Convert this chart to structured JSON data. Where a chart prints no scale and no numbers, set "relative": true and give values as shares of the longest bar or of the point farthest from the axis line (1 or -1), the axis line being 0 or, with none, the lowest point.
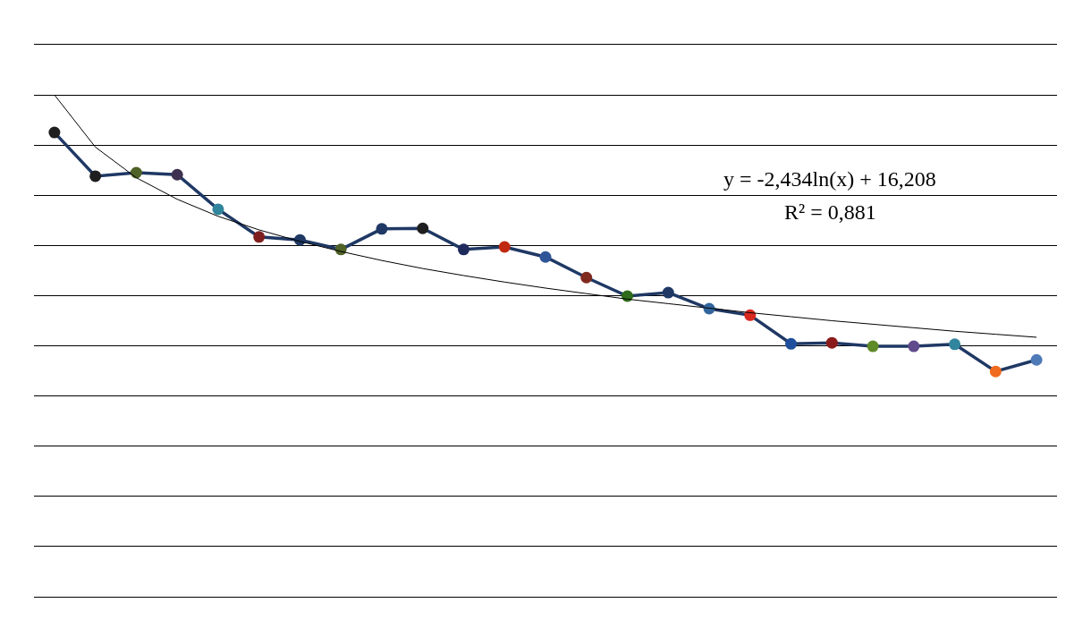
{
  "chart_data": {
    "type": "line",
    "relative": true,
    "categories": [
      null,
      null,
      null,
      null,
      null,
      null,
      null,
      null,
      null,
      null,
      null,
      null,
      null,
      null,
      null,
      null,
      null,
      null,
      null,
      null,
      null,
      null,
      null,
      null,
      null
    ],
    "series": [
      {
        "color": "#1f3864",
        "colors": [
          "#1f1f1f",
          "#1f1f1f",
          "#4f6228",
          "#3f3151",
          "#31859c",
          "#7f1f1f",
          "#1f3864",
          "#4f6228",
          "#1f3864",
          "#1f1f1f",
          "#1f2a5c",
          "#c0280f",
          "#2e5597",
          "#7f2a1f",
          "#2e6b1a",
          "#1f3864",
          "#31659c",
          "#d8281f",
          "#1f4e9c",
          "#8b1a1a",
          "#5f8a28",
          "#5f4a8b",
          "#31859c",
          "#f06a1f",
          "#4f7ab8"
        ],
        "values": [
          0.925,
          0.838,
          0.845,
          0.841,
          0.772,
          0.717,
          0.711,
          0.692,
          0.733,
          0.734,
          0.692,
          0.697,
          0.677,
          0.636,
          0.599,
          0.606,
          0.574,
          0.561,
          0.504,
          0.506,
          0.499,
          0.499,
          0.503,
          0.449,
          0.472
        ]
      },
      {
        "color": "#000000",
        "marker": "none",
        "values": [
          1.0,
          0.896,
          0.835,
          0.792,
          0.758,
          0.731,
          0.708,
          0.688,
          0.67,
          0.654,
          0.64,
          0.627,
          0.615,
          0.604,
          0.593,
          0.584,
          0.575,
          0.566,
          0.558,
          0.55,
          0.543,
          0.536,
          0.529,
          0.523,
          0.517
        ]
      }
    ],
    "annotations": [
      "y = -2,434ln(x) + 16,208",
      "R² = 0,881"
    ],
    "grid": "y",
    "marker": "circle"
  }
}
